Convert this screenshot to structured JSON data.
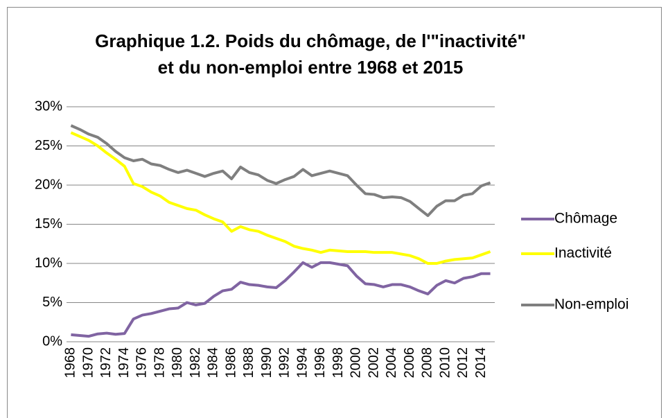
{
  "chart_data": {
    "type": "line",
    "title": [
      "Graphique 1.2. Poids du chômage, de l'\"inactivité\"",
      "et du non-emploi entre 1968 et 2015"
    ],
    "categories": [
      "1968",
      null,
      "1970",
      null,
      "1972",
      null,
      "1974",
      null,
      "1976",
      null,
      "1978",
      null,
      "1980",
      null,
      "1982",
      null,
      "1984",
      null,
      "1986",
      null,
      "1988",
      null,
      "1990",
      null,
      "1992",
      null,
      "1994",
      null,
      "1996",
      null,
      "1998",
      null,
      "2000",
      null,
      "2002",
      null,
      "2004",
      null,
      "2006",
      null,
      "2008",
      null,
      "2010",
      null,
      "2012",
      null,
      "2014",
      null
    ],
    "series": [
      {
        "name": "Chômage",
        "color": "#8064a2",
        "values": [
          0.9,
          0.8,
          0.7,
          1.0,
          1.1,
          0.95,
          1.05,
          2.9,
          3.4,
          3.6,
          3.9,
          4.2,
          4.3,
          5.0,
          4.7,
          4.9,
          5.8,
          6.5,
          6.7,
          7.6,
          7.3,
          7.2,
          7.0,
          6.9,
          7.8,
          8.9,
          10.1,
          9.5,
          10.1,
          10.1,
          9.9,
          9.7,
          8.4,
          7.4,
          7.3,
          7.0,
          7.3,
          7.3,
          7.0,
          6.5,
          6.1,
          7.2,
          7.8,
          7.5,
          8.1,
          8.3,
          8.7,
          8.7
        ]
      },
      {
        "name": "Inactivité",
        "color": "#ffff00",
        "values": [
          26.7,
          26.2,
          25.7,
          25.0,
          24.1,
          23.3,
          22.4,
          20.2,
          19.8,
          19.1,
          18.6,
          17.8,
          17.4,
          17.0,
          16.8,
          16.2,
          15.7,
          15.3,
          14.1,
          14.7,
          14.3,
          14.1,
          13.6,
          13.2,
          12.8,
          12.2,
          11.9,
          11.7,
          11.4,
          11.7,
          11.6,
          11.5,
          11.5,
          11.5,
          11.4,
          11.4,
          11.4,
          11.2,
          11.0,
          10.6,
          10.0,
          10.0,
          10.3,
          10.5,
          10.6,
          10.7,
          11.1,
          11.5
        ]
      },
      {
        "name": "Non-emploi",
        "color": "#7f7f7f",
        "values": [
          27.6,
          27.1,
          26.5,
          26.1,
          25.3,
          24.3,
          23.5,
          23.1,
          23.3,
          22.7,
          22.5,
          22.0,
          21.6,
          21.9,
          21.5,
          21.1,
          21.5,
          21.8,
          20.8,
          22.3,
          21.6,
          21.3,
          20.6,
          20.2,
          20.7,
          21.1,
          22.0,
          21.2,
          21.5,
          21.8,
          21.5,
          21.2,
          20.0,
          18.9,
          18.8,
          18.4,
          18.5,
          18.4,
          17.9,
          17.0,
          16.1,
          17.3,
          18.0,
          18.0,
          18.7,
          18.9,
          19.9,
          20.3
        ]
      }
    ],
    "ylim": [
      0,
      30
    ],
    "yticks": [
      {
        "value": 0,
        "label": "0%"
      },
      {
        "value": 5,
        "label": "5%"
      },
      {
        "value": 10,
        "label": "10%"
      },
      {
        "value": 15,
        "label": "15%"
      },
      {
        "value": 20,
        "label": "20%"
      },
      {
        "value": 25,
        "label": "25%"
      },
      {
        "value": 30,
        "label": "30%"
      }
    ],
    "grid": true,
    "legend": "right"
  }
}
